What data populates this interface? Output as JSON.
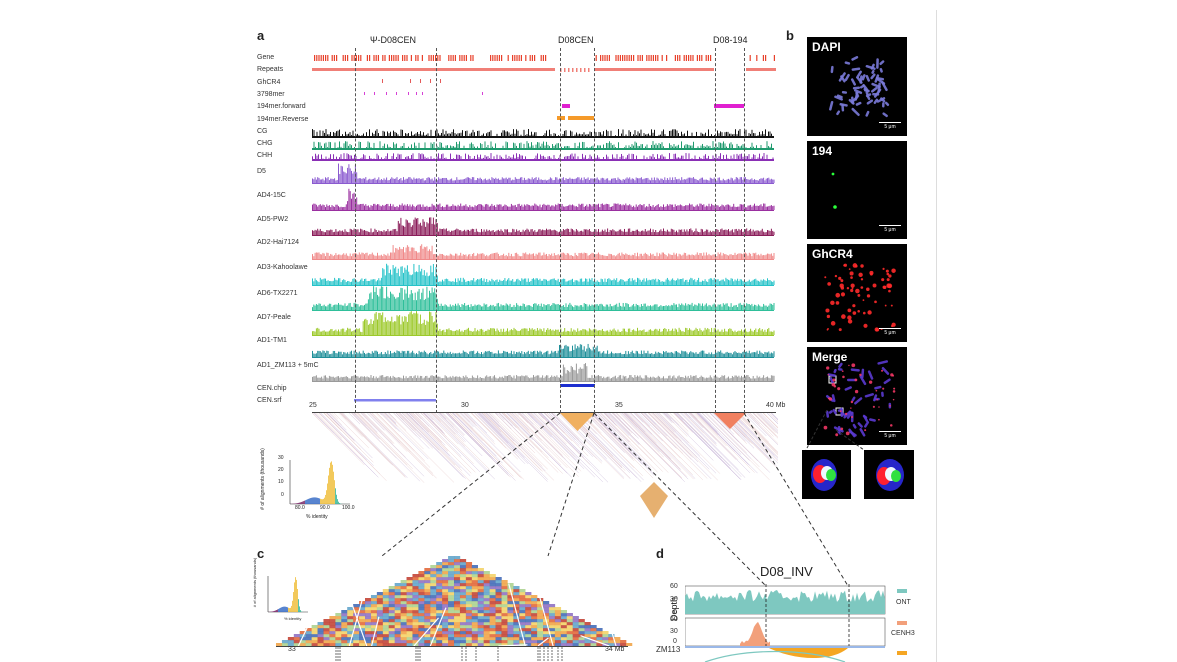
{
  "panel_a": {
    "letter": "a",
    "regions": [
      "Ψ-D08CEN",
      "D08CEN",
      "D08-194"
    ],
    "tracks": [
      "Gene",
      "Repeats",
      "GhCR4",
      "3798mer",
      "194mer.forward",
      "194mer.Reverse",
      "CG",
      "CHG",
      "CHH",
      "D5",
      "AD4-15C",
      "AD5-PW2",
      "AD2-Hai7124",
      "AD3-Kahoolawe",
      "AD6-TX2271",
      "AD7-Peale",
      "AD1-TM1",
      "AD1_ZM113 + 5mC",
      "CEN.chip",
      "CEN.srf"
    ],
    "axis_ticks": [
      "25",
      "30",
      "35",
      "40 Mb"
    ],
    "inset": {
      "ylabel": "# of alignments (thousands)",
      "xlabel": "% identity",
      "yticks": [
        "30",
        "20",
        "10",
        "0"
      ],
      "xticks": [
        "80.0",
        "90.0",
        "100.0"
      ]
    }
  },
  "panel_b": {
    "letter": "b",
    "images": [
      "DAPI",
      "194",
      "GhCR4",
      "Merge"
    ],
    "scale": "5 μm"
  },
  "panel_c": {
    "letter": "c",
    "axis_ticks": [
      "33",
      "34 Mb"
    ],
    "inset": {
      "ylabel": "# of alignments (thousands)",
      "xlabel": "% identity"
    }
  },
  "panel_d": {
    "letter": "d",
    "title": "D08_INV",
    "ylabel": "Depth",
    "yticks_top": [
      "60",
      "30",
      "0"
    ],
    "yticks_bottom": [
      "60",
      "30",
      "0"
    ],
    "legend": [
      "ONT",
      "CENH3"
    ],
    "sample": "ZM113",
    "colors": {
      "ont": "#7ec8c0",
      "cenh3": "#f2a07b",
      "orange": "#f5a623"
    }
  },
  "colors": {
    "gene": "#e8402a",
    "repeats": "#f07f77",
    "ghcr4": "#e45a5a",
    "mer3798": "#d63fd6",
    "fwd194": "#e020d0",
    "rev194": "#f59a2a",
    "cg": "#111111",
    "chg": "#1f9a6e",
    "chh": "#8a2fb5",
    "D5": "#8a5ad0",
    "AD4-15C": "#9a2fa0",
    "AD5-PW2": "#8b1d5a",
    "AD2-Hai7124": "#f08a8a",
    "AD3-Kahoolawe": "#26c3c9",
    "AD6-TX2271": "#2fbf9a",
    "AD7-Peale": "#9cc92a",
    "AD1-TM1": "#1f8f99",
    "AD1_ZM113": "#9a9a9a",
    "cen": "#1d2fd0",
    "cen_srf": "#8080ee"
  }
}
